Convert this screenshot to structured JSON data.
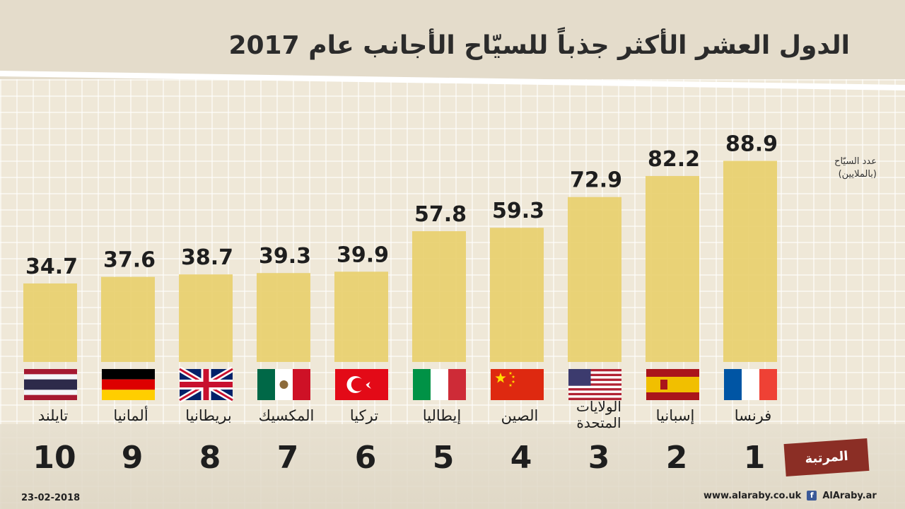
{
  "title": "الدول العشر الأكثر جذباً للسيّاح الأجانب عام 2017",
  "unit_label_line1": "عدد السيّاح",
  "unit_label_line2": "(بالملايين)",
  "rank_tag": "المرتبة",
  "date": "23-02-2018",
  "site": "www.alaraby.co.uk",
  "handle": "AlAraby.ar",
  "colors": {
    "bar": "#e8cf6e",
    "rank_tag": "#8b2e25",
    "text": "#1e1e1e"
  },
  "chart_data": {
    "type": "bar",
    "title": "الدول العشر الأكثر جذباً للسيّاح الأجانب عام 2017",
    "ylabel": "عدد السيّاح (بالملايين)",
    "ylim": [
      0,
      100
    ],
    "categories": [
      "تايلند",
      "ألمانيا",
      "بريطانيا",
      "المكسيك",
      "تركيا",
      "إيطاليا",
      "الصين",
      "الولايات المتحدة",
      "إسبانيا",
      "فرنسا"
    ],
    "values": [
      34.7,
      37.6,
      38.7,
      39.3,
      39.9,
      57.8,
      59.3,
      72.9,
      82.2,
      88.9
    ],
    "value_labels": [
      "34.7",
      "37.6",
      "38.7",
      "39.3",
      "39.9",
      "57.8",
      "59.3",
      "72.9",
      "82.2",
      "88.9"
    ],
    "ranks": [
      "10",
      "9",
      "8",
      "7",
      "6",
      "5",
      "4",
      "3",
      "2",
      "1"
    ],
    "flags": [
      "thailand-flag",
      "germany-flag",
      "uk-flag",
      "mexico-flag",
      "turkey-flag",
      "italy-flag",
      "china-flag",
      "usa-flag",
      "spain-flag",
      "france-flag"
    ],
    "grid": false,
    "legend": "none"
  }
}
